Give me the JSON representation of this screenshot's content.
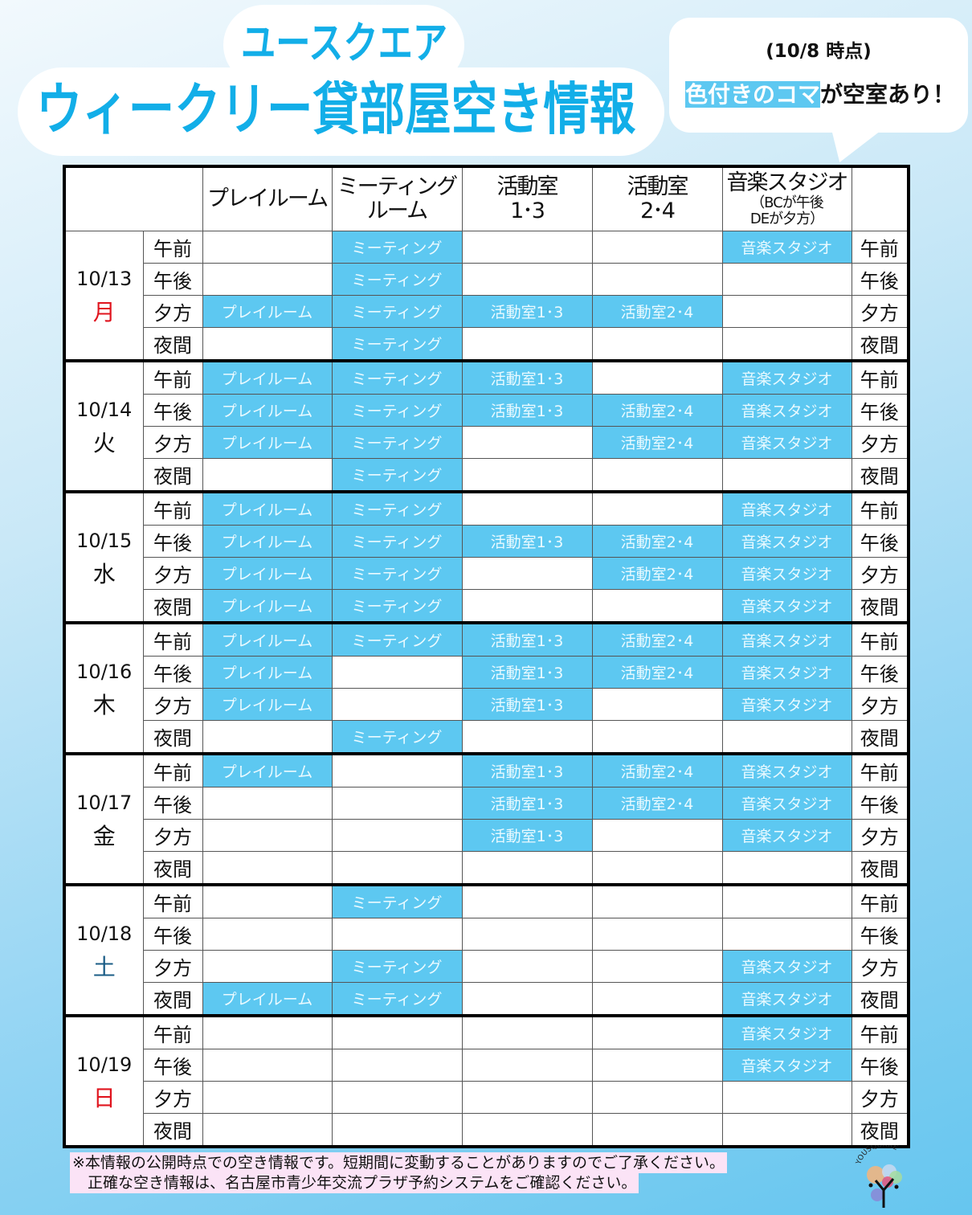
{
  "header": {
    "title_line1": "ユースクエア",
    "title_line2": "ウィークリー貸部屋空き情報",
    "as_of": "(10/8  時点)",
    "note_highlight": "色付きのコマ",
    "note_rest": "が空室あり！"
  },
  "colors": {
    "available": "#5dc8f1",
    "title": "#12aee8",
    "monday": "#e0141e",
    "sunday": "#e0141e",
    "saturday": "#1a5c86",
    "footer_bg": "#fbe3f6"
  },
  "columns": [
    {
      "label": "プレイルーム",
      "sub": ""
    },
    {
      "label": "ミーティング\nルーム",
      "sub": ""
    },
    {
      "label": "活動室\n1･3",
      "sub": ""
    },
    {
      "label": "活動室\n2･4",
      "sub": ""
    },
    {
      "label": "音楽スタジオ",
      "sub": "（BCが午後\nDEが夕方）"
    }
  ],
  "room_labels": [
    "プレイルーム",
    "ミーティング",
    "活動室1･3",
    "活動室2･4",
    "音楽スタジオ"
  ],
  "slots": [
    "午前",
    "午後",
    "夕方",
    "夜間"
  ],
  "days": [
    {
      "date": "10/13",
      "dow": "月",
      "dow_color": "#e0141e",
      "availability": [
        [
          0,
          1,
          0,
          0,
          1
        ],
        [
          0,
          1,
          0,
          0,
          0
        ],
        [
          1,
          1,
          1,
          1,
          0
        ],
        [
          0,
          1,
          0,
          0,
          0
        ]
      ]
    },
    {
      "date": "10/14",
      "dow": "火",
      "dow_color": "#111111",
      "availability": [
        [
          1,
          1,
          1,
          0,
          1
        ],
        [
          1,
          1,
          1,
          1,
          1
        ],
        [
          1,
          1,
          0,
          1,
          1
        ],
        [
          0,
          1,
          0,
          0,
          0
        ]
      ]
    },
    {
      "date": "10/15",
      "dow": "水",
      "dow_color": "#111111",
      "availability": [
        [
          1,
          1,
          0,
          0,
          1
        ],
        [
          1,
          1,
          1,
          1,
          1
        ],
        [
          1,
          1,
          0,
          1,
          1
        ],
        [
          1,
          1,
          0,
          0,
          1
        ]
      ]
    },
    {
      "date": "10/16",
      "dow": "木",
      "dow_color": "#111111",
      "availability": [
        [
          1,
          1,
          1,
          1,
          1
        ],
        [
          1,
          0,
          1,
          1,
          1
        ],
        [
          1,
          0,
          1,
          0,
          1
        ],
        [
          0,
          1,
          0,
          0,
          0
        ]
      ]
    },
    {
      "date": "10/17",
      "dow": "金",
      "dow_color": "#111111",
      "availability": [
        [
          1,
          0,
          1,
          1,
          1
        ],
        [
          0,
          0,
          1,
          1,
          1
        ],
        [
          0,
          0,
          1,
          0,
          1
        ],
        [
          0,
          0,
          0,
          0,
          0
        ]
      ]
    },
    {
      "date": "10/18",
      "dow": "土",
      "dow_color": "#1a5c86",
      "availability": [
        [
          0,
          1,
          0,
          0,
          0
        ],
        [
          0,
          0,
          0,
          0,
          0
        ],
        [
          0,
          1,
          0,
          0,
          1
        ],
        [
          1,
          1,
          0,
          0,
          1
        ]
      ]
    },
    {
      "date": "10/19",
      "dow": "日",
      "dow_color": "#e0141e",
      "availability": [
        [
          0,
          0,
          0,
          0,
          1
        ],
        [
          0,
          0,
          0,
          0,
          1
        ],
        [
          0,
          0,
          0,
          0,
          0
        ],
        [
          0,
          0,
          0,
          0,
          0
        ]
      ]
    }
  ],
  "footer": {
    "line1": "※本情報の公開時点での空き情報です。短期間に変動することがありますのでご了承ください。",
    "line2": "正確な空き情報は、名古屋市青少年交流プラザ予約システムをご確認ください。"
  },
  "logo": {
    "text": "YOUSQUARE"
  }
}
